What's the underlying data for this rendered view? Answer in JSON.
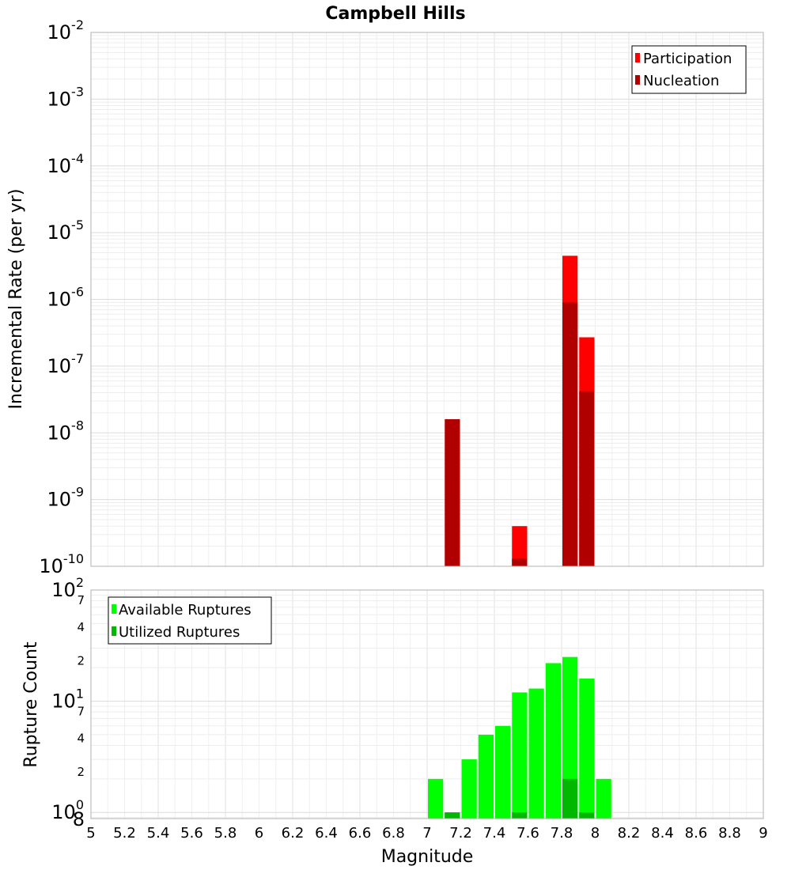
{
  "chart_data": [
    {
      "type": "bar",
      "title": "Campbell Hills",
      "ylabel": "Incremental Rate (per yr)",
      "xlabel": "",
      "y_scale": "log",
      "ylim": [
        1e-10,
        0.01
      ],
      "xlim": [
        5,
        9
      ],
      "bar_width": 0.1,
      "y_tick_labels": [
        {
          "base": "10",
          "exp": "-2"
        },
        {
          "base": "10",
          "exp": "-3"
        },
        {
          "base": "10",
          "exp": "-4"
        },
        {
          "base": "10",
          "exp": "-5"
        },
        {
          "base": "10",
          "exp": "-6"
        },
        {
          "base": "10",
          "exp": "-7"
        },
        {
          "base": "10",
          "exp": "-8"
        },
        {
          "base": "10",
          "exp": "-9"
        },
        {
          "base": "10",
          "exp": "-10"
        }
      ],
      "legend": {
        "position": "top-right"
      },
      "series": [
        {
          "name": "Participation",
          "color": "#ff0000",
          "x": [
            7.55,
            7.85,
            7.95
          ],
          "values": [
            4e-10,
            4.5e-06,
            2.7e-07
          ]
        },
        {
          "name": "Nucleation",
          "color": "#b00000",
          "x": [
            7.15,
            7.55,
            7.85,
            7.95
          ],
          "values": [
            1.6e-08,
            1.3e-10,
            9e-07,
            4.2e-08
          ]
        }
      ]
    },
    {
      "type": "bar",
      "ylabel": "Rupture Count",
      "xlabel": "Magnitude",
      "y_scale": "log",
      "ylim": [
        0.88,
        100
      ],
      "xlim": [
        5,
        9
      ],
      "bar_width": 0.1,
      "x_ticks": [
        "5",
        "5.2",
        "5.4",
        "5.6",
        "5.8",
        "6",
        "6.2",
        "6.4",
        "6.6",
        "6.8",
        "7",
        "7.2",
        "7.4",
        "7.6",
        "7.8",
        "8",
        "8.2",
        "8.4",
        "8.6",
        "8.8",
        "9"
      ],
      "y_tick_labels": [
        {
          "base": "10",
          "exp": "2"
        },
        {
          "base": "10",
          "exp": "1"
        },
        {
          "base": "10",
          "exp": "0"
        }
      ],
      "y_minor_labels": [
        "7",
        "4",
        "2",
        "7",
        "4",
        "2",
        "8"
      ],
      "legend": {
        "position": "top-left"
      },
      "series": [
        {
          "name": "Available Ruptures",
          "color": "#00ff00",
          "x": [
            7.05,
            7.15,
            7.25,
            7.35,
            7.45,
            7.55,
            7.65,
            7.75,
            7.85,
            7.95,
            8.05
          ],
          "values": [
            2,
            1,
            3,
            5,
            6,
            12,
            13,
            22,
            25,
            16,
            2
          ]
        },
        {
          "name": "Utilized Ruptures",
          "color": "#00b800",
          "x": [
            7.15,
            7.55,
            7.85,
            7.95
          ],
          "values": [
            1,
            1,
            2,
            1
          ]
        }
      ]
    }
  ]
}
